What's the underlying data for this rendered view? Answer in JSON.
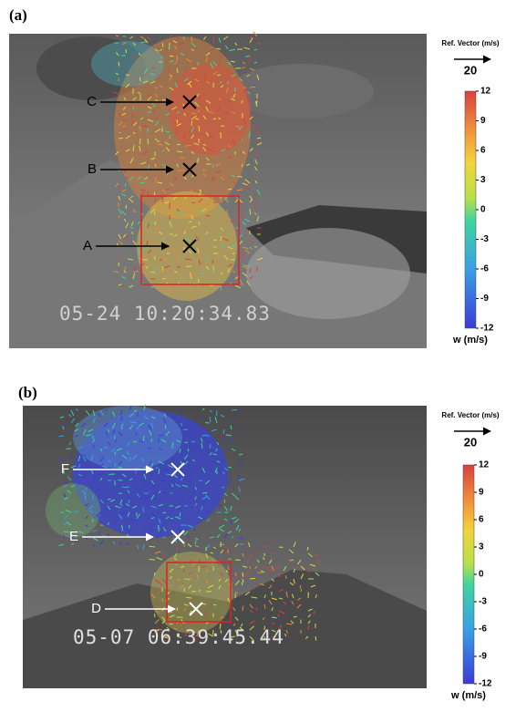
{
  "panels": [
    {
      "label": "(a)",
      "timestamp": "05-24 10:20:34.83",
      "markers": [
        {
          "label": "C"
        },
        {
          "label": "B"
        },
        {
          "label": "A"
        }
      ],
      "colorbar": {
        "ref_label": "Ref. Vector (m/s)",
        "ref_value": "20",
        "ticks": [
          12,
          9,
          6,
          3,
          0,
          -3,
          -6,
          -9,
          -12
        ],
        "unit": "w (m/s)"
      }
    },
    {
      "label": "(b)",
      "timestamp": "05-07 06:39:45.44",
      "markers": [
        {
          "label": "F"
        },
        {
          "label": "E"
        },
        {
          "label": "D"
        }
      ],
      "colorbar": {
        "ref_label": "Ref. Vector (m/s)",
        "ref_value": "20",
        "ticks": [
          12,
          9,
          6,
          3,
          0,
          -3,
          -6,
          -9,
          -12
        ],
        "unit": "w (m/s)"
      }
    }
  ]
}
